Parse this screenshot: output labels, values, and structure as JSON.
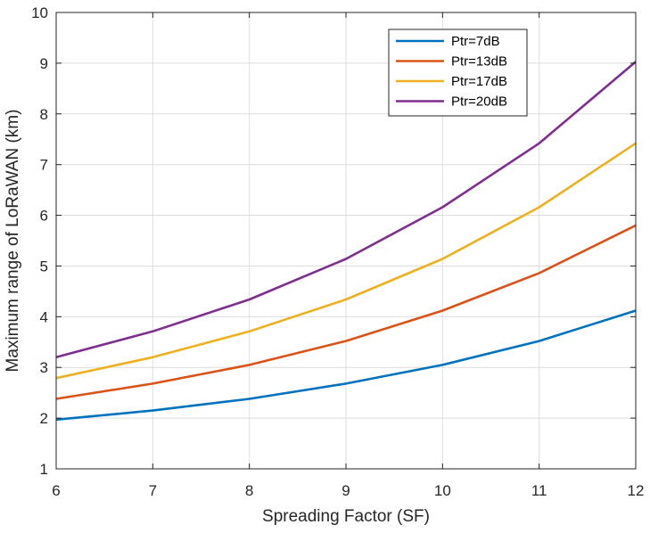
{
  "chart_data": {
    "type": "line",
    "title": "",
    "xlabel": "Spreading Factor (SF)",
    "ylabel": "Maximum range of LoRaWAN (km)",
    "x": [
      6,
      7,
      8,
      9,
      10,
      11,
      12
    ],
    "xlim": [
      6,
      12
    ],
    "ylim": [
      1,
      10
    ],
    "xticks": [
      6,
      7,
      8,
      9,
      10,
      11,
      12
    ],
    "yticks": [
      1,
      2,
      3,
      4,
      5,
      6,
      7,
      8,
      9,
      10
    ],
    "grid": true,
    "legend_position": "top-right",
    "series": [
      {
        "name": "Ptr=7dB",
        "color": "#0072bd",
        "values": [
          1.97,
          2.15,
          2.38,
          2.68,
          3.05,
          3.52,
          4.12
        ]
      },
      {
        "name": "Ptr=13dB",
        "color": "#d95319",
        "values": [
          2.38,
          2.68,
          3.05,
          3.52,
          4.12,
          4.86,
          5.8
        ]
      },
      {
        "name": "Ptr=17dB",
        "color": "#edb120",
        "values": [
          2.79,
          3.2,
          3.71,
          4.34,
          5.14,
          6.16,
          7.42
        ]
      },
      {
        "name": "Ptr=20dB",
        "color": "#7e2f8e",
        "values": [
          3.2,
          3.71,
          4.34,
          5.14,
          6.16,
          7.42,
          9.03
        ]
      }
    ]
  }
}
